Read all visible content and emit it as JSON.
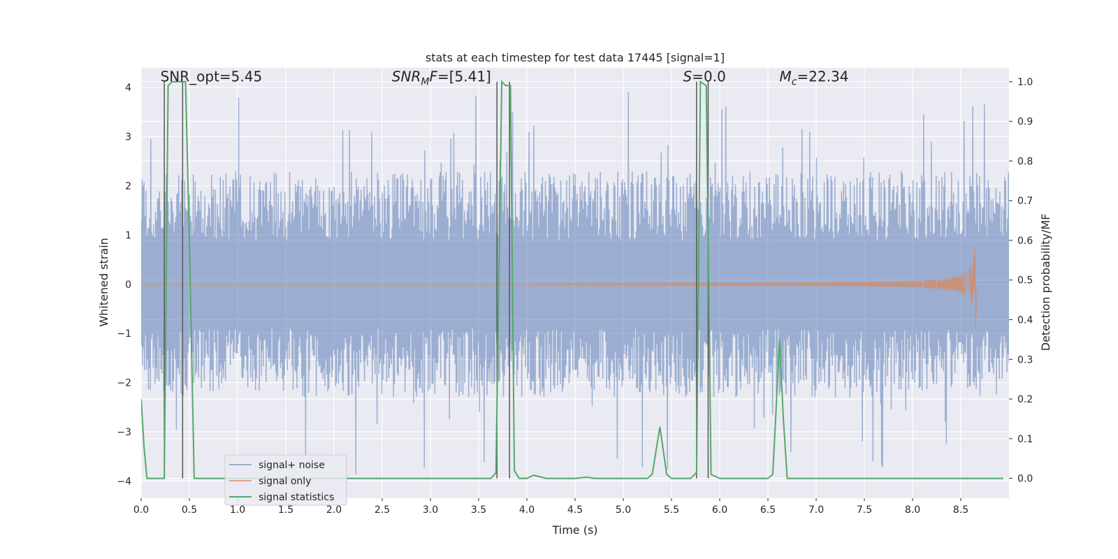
{
  "chart_data": {
    "type": "line",
    "title": "stats at each timestep for test data 17445 [signal=1]",
    "xlabel": "Time (s)",
    "ylabel": "Whitened strain",
    "ylabel_right": "Detection probability/MF",
    "xlim": [
      0,
      9
    ],
    "ylim": [
      -4.35,
      4.4
    ],
    "ylim_right": [
      -0.05,
      1.035
    ],
    "x_ticks": [
      0.0,
      0.5,
      1.0,
      1.5,
      2.0,
      2.5,
      3.0,
      3.5,
      4.0,
      4.5,
      5.0,
      5.5,
      6.0,
      6.5,
      7.0,
      7.5,
      8.0,
      8.5
    ],
    "x_tick_labels": [
      "0.0",
      "0.5",
      "1.0",
      "1.5",
      "2.0",
      "2.5",
      "3.0",
      "3.5",
      "4.0",
      "4.5",
      "5.0",
      "5.5",
      "6.0",
      "6.5",
      "7.0",
      "7.5",
      "8.0",
      "8.5"
    ],
    "y_ticks": [
      -4,
      -3,
      -2,
      -1,
      0,
      1,
      2,
      3,
      4
    ],
    "y_tick_labels": [
      "−4",
      "−3",
      "−2",
      "−1",
      "0",
      "1",
      "2",
      "3",
      "4"
    ],
    "y_right_ticks": [
      0.0,
      0.1,
      0.2,
      0.3,
      0.4,
      0.5,
      0.6,
      0.7,
      0.8,
      0.9,
      1.0
    ],
    "y_right_tick_labels": [
      "0.0",
      "0.1",
      "0.2",
      "0.3",
      "0.4",
      "0.5",
      "0.6",
      "0.7",
      "0.8",
      "0.9",
      "1.0"
    ],
    "annotations": [
      {
        "text": "SNR_opt=5.45",
        "x": 0.2,
        "y": 4.12
      },
      {
        "text": "SNRMF=[5.41]",
        "x": 2.6,
        "y": 4.12
      },
      {
        "text": "S=0.0",
        "x": 5.62,
        "y": 4.12
      },
      {
        "text": "Mc=22.34",
        "x": 6.62,
        "y": 4.12
      }
    ],
    "series": [
      {
        "name": "signal+ noise",
        "color": "#4c72b0",
        "axis": "left",
        "envelope": 1.9,
        "spike_max": 4.0,
        "samples": 1800
      },
      {
        "name": "signal only",
        "color": "#dd8452",
        "axis": "left",
        "chirp_start": 4.1,
        "merger": 8.65,
        "peak_amplitude": 1.0
      },
      {
        "name": "signal statistics",
        "color": "#55a868",
        "axis": "right",
        "x": [
          0.0,
          0.03,
          0.06,
          0.24,
          0.28,
          0.32,
          0.38,
          0.42,
          0.46,
          0.5,
          0.55,
          0.7,
          0.8,
          0.9,
          1.0,
          1.5,
          2.0,
          2.5,
          3.0,
          3.5,
          3.63,
          3.68,
          3.74,
          3.78,
          3.83,
          3.87,
          3.92,
          4.0,
          4.07,
          4.2,
          4.5,
          4.62,
          4.7,
          5.0,
          5.25,
          5.3,
          5.38,
          5.45,
          5.5,
          5.7,
          5.76,
          5.8,
          5.86,
          5.91,
          6.0,
          6.5,
          6.55,
          6.58,
          6.62,
          6.66,
          6.7,
          7.0,
          8.0,
          8.94
        ],
        "y": [
          0.2,
          0.08,
          0.0,
          0.0,
          0.99,
          1.0,
          1.0,
          1.0,
          1.0,
          0.6,
          0.0,
          0.0,
          0.0,
          0.0,
          0.0,
          0.0,
          0.0,
          0.0,
          0.0,
          0.0,
          0.0,
          0.015,
          1.0,
          0.99,
          0.99,
          0.02,
          0.0,
          0.0,
          0.008,
          0.0,
          0.0,
          0.003,
          0.0,
          0.0,
          0.0,
          0.01,
          0.13,
          0.01,
          0.0,
          0.0,
          0.015,
          1.0,
          0.99,
          0.01,
          0.0,
          0.0,
          0.01,
          0.15,
          0.35,
          0.15,
          0.0,
          0.0,
          0.0,
          0.0
        ]
      }
    ],
    "vertical_lines": [
      {
        "x": 0.24,
        "color": "#555555"
      },
      {
        "x": 0.43,
        "color": "#555555"
      },
      {
        "x": 3.69,
        "color": "#555555"
      },
      {
        "x": 3.82,
        "color": "#555555"
      },
      {
        "x": 5.76,
        "color": "#555555"
      },
      {
        "x": 5.88,
        "color": "#555555"
      }
    ],
    "legend": {
      "position": "lower-left",
      "items": [
        "signal+ noise",
        "signal only",
        "signal statistics"
      ]
    },
    "grid": true,
    "background": "#eaeaf2"
  }
}
